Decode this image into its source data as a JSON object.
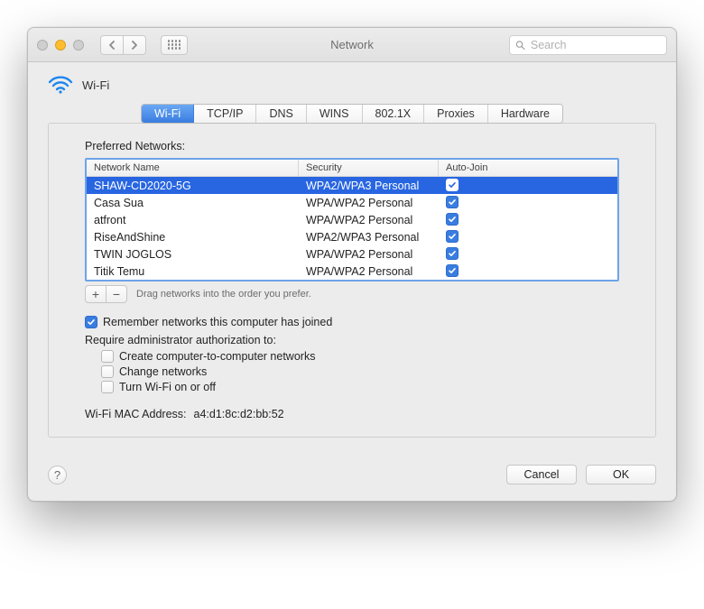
{
  "colors": {
    "traffic_close": "#cfcfcf",
    "traffic_minimize": "#febd2e",
    "traffic_zoom": "#cfcfcf",
    "accent": "#3a7de0",
    "selection": "#2866e1",
    "table_focus_border": "#6ea3e8"
  },
  "titlebar": {
    "title": "Network",
    "search_placeholder": "Search"
  },
  "header": {
    "label": "Wi-Fi"
  },
  "tabs": [
    {
      "label": "Wi-Fi",
      "active": true
    },
    {
      "label": "TCP/IP",
      "active": false
    },
    {
      "label": "DNS",
      "active": false
    },
    {
      "label": "WINS",
      "active": false
    },
    {
      "label": "802.1X",
      "active": false
    },
    {
      "label": "Proxies",
      "active": false
    },
    {
      "label": "Hardware",
      "active": false
    }
  ],
  "preferred": {
    "label": "Preferred Networks:",
    "columns": {
      "name": "Network Name",
      "security": "Security",
      "autojoin": "Auto-Join"
    },
    "rows": [
      {
        "name": "SHAW-CD2020-5G",
        "security": "WPA2/WPA3 Personal",
        "autojoin": true,
        "selected": true
      },
      {
        "name": "Casa Sua",
        "security": "WPA/WPA2 Personal",
        "autojoin": true,
        "selected": false
      },
      {
        "name": "atfront",
        "security": "WPA/WPA2 Personal",
        "autojoin": true,
        "selected": false
      },
      {
        "name": "RiseAndShine",
        "security": "WPA2/WPA3 Personal",
        "autojoin": true,
        "selected": false
      },
      {
        "name": "TWIN JOGLOS",
        "security": "WPA/WPA2 Personal",
        "autojoin": true,
        "selected": false
      },
      {
        "name": "Titik Temu",
        "security": "WPA/WPA2 Personal",
        "autojoin": true,
        "selected": false
      }
    ],
    "drag_hint": "Drag networks into the order you prefer."
  },
  "options": {
    "remember": {
      "label": "Remember networks this computer has joined",
      "checked": true
    },
    "require_label": "Require administrator authorization to:",
    "create": {
      "label": "Create computer-to-computer networks",
      "checked": false
    },
    "change": {
      "label": "Change networks",
      "checked": false
    },
    "toggle": {
      "label": "Turn Wi-Fi on or off",
      "checked": false
    }
  },
  "mac": {
    "label": "Wi-Fi MAC Address:",
    "value": "a4:d1:8c:d2:bb:52"
  },
  "footer": {
    "cancel": "Cancel",
    "ok": "OK"
  }
}
